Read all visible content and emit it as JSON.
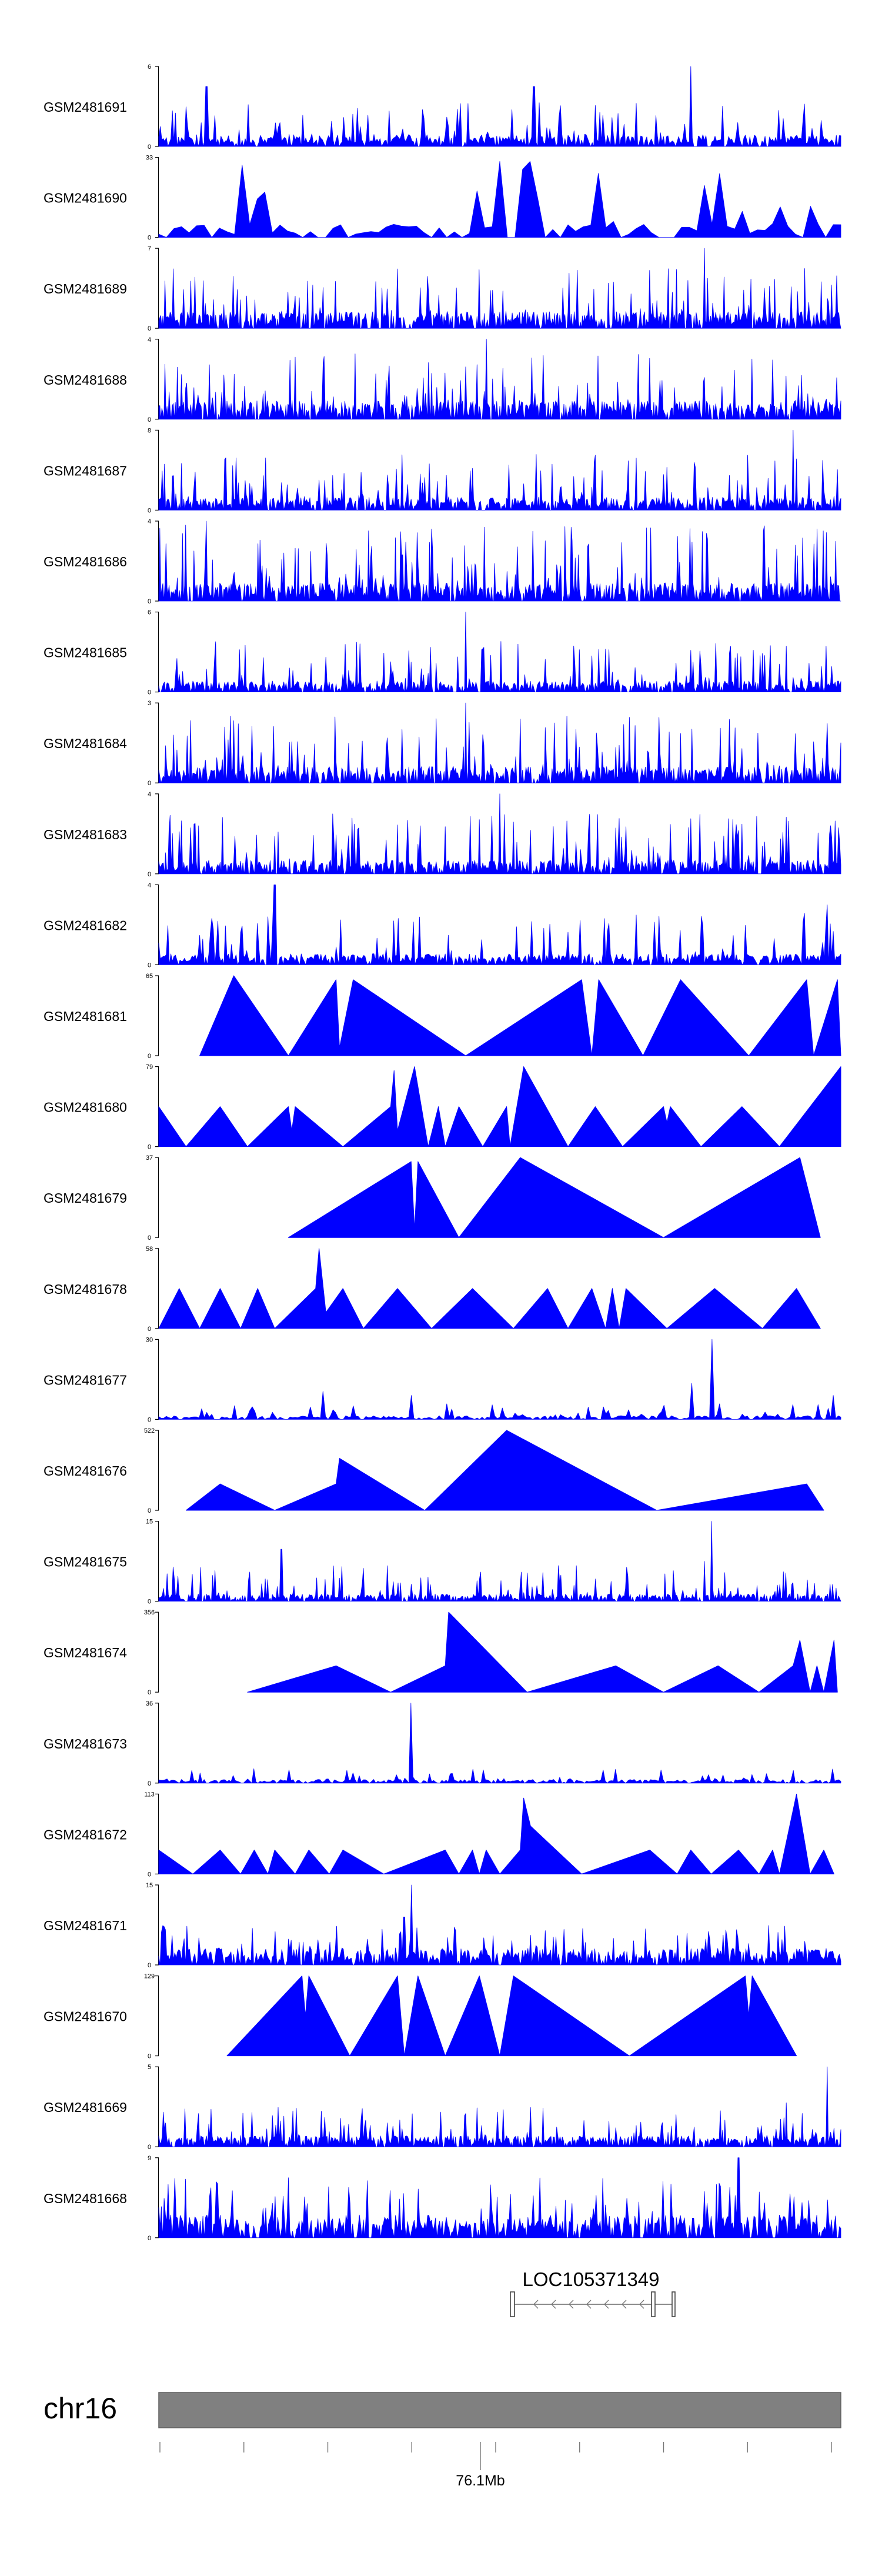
{
  "chart_data": {
    "type": "area",
    "title": "",
    "xlabel": "",
    "ylabel": "",
    "color": "#0000ff",
    "tracks": [
      {
        "name": "GSM2481691",
        "ymax": 6,
        "ymin": 0,
        "style": "dense",
        "density": 150,
        "base": 0.13,
        "spike": 0.55,
        "peaks": [
          [
            0.78,
            1.0
          ],
          [
            0.07,
            0.75
          ],
          [
            0.55,
            0.75
          ]
        ]
      },
      {
        "name": "GSM2481690",
        "ymax": 33,
        "ymin": 0,
        "style": "triangles",
        "density": 30,
        "base": 0.15,
        "spike": 0.95,
        "peaks": [
          [
            0.5,
            0.95
          ],
          [
            0.53,
            0.85
          ],
          [
            0.54,
            0.95
          ],
          [
            0.64,
            0.8
          ],
          [
            0.8,
            0.65
          ]
        ]
      },
      {
        "name": "GSM2481689",
        "ymax": 7,
        "ymin": 0,
        "style": "dense",
        "density": 220,
        "base": 0.18,
        "spike": 0.75,
        "peaks": [
          [
            0.8,
            1.0
          ]
        ]
      },
      {
        "name": "GSM2481688",
        "ymax": 4,
        "ymin": 0,
        "style": "dense",
        "density": 220,
        "base": 0.2,
        "spike": 0.85,
        "peaks": [
          [
            0.48,
            1.0
          ]
        ]
      },
      {
        "name": "GSM2481687",
        "ymax": 8,
        "ymin": 0,
        "style": "dense",
        "density": 200,
        "base": 0.14,
        "spike": 0.7,
        "peaks": [
          [
            0.93,
            1.0
          ]
        ]
      },
      {
        "name": "GSM2481686",
        "ymax": 4,
        "ymin": 0,
        "style": "dense",
        "density": 220,
        "base": 0.2,
        "spike": 0.95,
        "peaks": [
          [
            0.07,
            1.0
          ]
        ]
      },
      {
        "name": "GSM2481685",
        "ymax": 6,
        "ymin": 0,
        "style": "dense",
        "density": 200,
        "base": 0.12,
        "spike": 0.65,
        "peaks": [
          [
            0.45,
            1.0
          ]
        ]
      },
      {
        "name": "GSM2481684",
        "ymax": 3,
        "ymin": 0,
        "style": "dense",
        "density": 200,
        "base": 0.18,
        "spike": 0.85,
        "peaks": [
          [
            0.45,
            1.0
          ]
        ]
      },
      {
        "name": "GSM2481683",
        "ymax": 4,
        "ymin": 0,
        "style": "dense",
        "density": 200,
        "base": 0.15,
        "spike": 0.75,
        "peaks": [
          [
            0.5,
            1.0
          ]
        ]
      },
      {
        "name": "GSM2481682",
        "ymax": 4,
        "ymin": 0,
        "style": "dense",
        "density": 150,
        "base": 0.12,
        "spike": 0.65,
        "peaks": [
          [
            0.17,
            1.0
          ],
          [
            0.98,
            0.75
          ]
        ]
      },
      {
        "name": "GSM2481681",
        "ymax": 65,
        "ymin": 0,
        "style": "points",
        "points": [
          [
            0.06,
            0
          ],
          [
            0.11,
            1.0
          ],
          [
            0.19,
            0
          ],
          [
            0.26,
            0.95
          ],
          [
            0.265,
            0.1
          ],
          [
            0.285,
            0.95
          ],
          [
            0.45,
            0
          ],
          [
            0.62,
            0.95
          ],
          [
            0.635,
            0
          ],
          [
            0.645,
            0.95
          ],
          [
            0.71,
            0
          ],
          [
            0.765,
            0.95
          ],
          [
            0.865,
            0
          ],
          [
            0.95,
            0.95
          ],
          [
            0.96,
            0
          ],
          [
            0.995,
            0.95
          ],
          [
            1.0,
            0
          ]
        ]
      },
      {
        "name": "GSM2481680",
        "ymax": 79,
        "ymin": 0,
        "style": "points",
        "points": [
          [
            0.0,
            0.5
          ],
          [
            0.04,
            0
          ],
          [
            0.09,
            0.5
          ],
          [
            0.13,
            0
          ],
          [
            0.19,
            0.5
          ],
          [
            0.195,
            0.2
          ],
          [
            0.2,
            0.5
          ],
          [
            0.27,
            0
          ],
          [
            0.34,
            0.5
          ],
          [
            0.345,
            0.95
          ],
          [
            0.35,
            0.2
          ],
          [
            0.375,
            1.0
          ],
          [
            0.395,
            0
          ],
          [
            0.41,
            0.5
          ],
          [
            0.42,
            0
          ],
          [
            0.44,
            0.5
          ],
          [
            0.475,
            0
          ],
          [
            0.51,
            0.5
          ],
          [
            0.515,
            0
          ],
          [
            0.535,
            1.0
          ],
          [
            0.6,
            0
          ],
          [
            0.64,
            0.5
          ],
          [
            0.68,
            0
          ],
          [
            0.74,
            0.5
          ],
          [
            0.745,
            0.3
          ],
          [
            0.75,
            0.5
          ],
          [
            0.795,
            0
          ],
          [
            0.855,
            0.5
          ],
          [
            0.91,
            0
          ],
          [
            1.0,
            1.0
          ]
        ]
      },
      {
        "name": "GSM2481679",
        "ymax": 37,
        "ymin": 0,
        "style": "points",
        "points": [
          [
            0.19,
            0
          ],
          [
            0.37,
            0.95
          ],
          [
            0.375,
            0.1
          ],
          [
            0.38,
            0.95
          ],
          [
            0.44,
            0
          ],
          [
            0.53,
            1.0
          ],
          [
            0.74,
            0
          ],
          [
            0.94,
            1.0
          ],
          [
            0.97,
            0
          ]
        ]
      },
      {
        "name": "GSM2481678",
        "ymax": 58,
        "ymin": 0,
        "style": "points",
        "points": [
          [
            0.0,
            0
          ],
          [
            0.03,
            0.5
          ],
          [
            0.06,
            0
          ],
          [
            0.09,
            0.5
          ],
          [
            0.12,
            0
          ],
          [
            0.145,
            0.5
          ],
          [
            0.17,
            0
          ],
          [
            0.23,
            0.5
          ],
          [
            0.235,
            1.0
          ],
          [
            0.245,
            0.2
          ],
          [
            0.27,
            0.5
          ],
          [
            0.3,
            0
          ],
          [
            0.35,
            0.5
          ],
          [
            0.4,
            0
          ],
          [
            0.46,
            0.5
          ],
          [
            0.52,
            0
          ],
          [
            0.57,
            0.5
          ],
          [
            0.6,
            0
          ],
          [
            0.635,
            0.5
          ],
          [
            0.655,
            0
          ],
          [
            0.665,
            0.5
          ],
          [
            0.675,
            0
          ],
          [
            0.685,
            0.5
          ],
          [
            0.745,
            0
          ],
          [
            0.815,
            0.5
          ],
          [
            0.885,
            0
          ],
          [
            0.935,
            0.5
          ],
          [
            0.97,
            0
          ]
        ]
      },
      {
        "name": "GSM2481677",
        "ymax": 30,
        "ymin": 0,
        "style": "dense",
        "density": 90,
        "base": 0.04,
        "spike": 0.2,
        "peaks": [
          [
            0.81,
            1.0
          ],
          [
            0.78,
            0.45
          ],
          [
            0.24,
            0.35
          ],
          [
            0.37,
            0.3
          ],
          [
            0.99,
            0.3
          ]
        ]
      },
      {
        "name": "GSM2481676",
        "ymax": 522,
        "ymin": 0,
        "style": "points",
        "points": [
          [
            0.04,
            0
          ],
          [
            0.09,
            0.33
          ],
          [
            0.17,
            0
          ],
          [
            0.26,
            0.33
          ],
          [
            0.265,
            0.65
          ],
          [
            0.39,
            0
          ],
          [
            0.51,
            1.0
          ],
          [
            0.73,
            0
          ],
          [
            0.95,
            0.33
          ],
          [
            0.975,
            0
          ]
        ]
      },
      {
        "name": "GSM2481675",
        "ymax": 15,
        "ymin": 0,
        "style": "dense",
        "density": 190,
        "base": 0.08,
        "spike": 0.45,
        "peaks": [
          [
            0.81,
            1.0
          ],
          [
            0.18,
            0.65
          ],
          [
            0.8,
            0.5
          ]
        ]
      },
      {
        "name": "GSM2481674",
        "ymax": 356,
        "ymin": 0,
        "style": "points",
        "points": [
          [
            0.13,
            0
          ],
          [
            0.26,
            0.33
          ],
          [
            0.34,
            0
          ],
          [
            0.42,
            0.33
          ],
          [
            0.425,
            1.0
          ],
          [
            0.54,
            0
          ],
          [
            0.67,
            0.33
          ],
          [
            0.74,
            0
          ],
          [
            0.82,
            0.33
          ],
          [
            0.88,
            0
          ],
          [
            0.93,
            0.33
          ],
          [
            0.94,
            0.65
          ],
          [
            0.955,
            0
          ],
          [
            0.965,
            0.33
          ],
          [
            0.975,
            0
          ],
          [
            0.99,
            0.65
          ],
          [
            0.995,
            0
          ]
        ]
      },
      {
        "name": "GSM2481673",
        "ymax": 36,
        "ymin": 0,
        "style": "dense",
        "density": 110,
        "base": 0.04,
        "spike": 0.18,
        "peaks": [
          [
            0.37,
            1.0
          ]
        ]
      },
      {
        "name": "GSM2481672",
        "ymax": 113,
        "ymin": 0,
        "style": "points",
        "points": [
          [
            0.0,
            0.3
          ],
          [
            0.05,
            0
          ],
          [
            0.09,
            0.3
          ],
          [
            0.12,
            0
          ],
          [
            0.14,
            0.3
          ],
          [
            0.16,
            0
          ],
          [
            0.17,
            0.3
          ],
          [
            0.2,
            0
          ],
          [
            0.22,
            0.3
          ],
          [
            0.25,
            0
          ],
          [
            0.27,
            0.3
          ],
          [
            0.33,
            0
          ],
          [
            0.42,
            0.3
          ],
          [
            0.44,
            0
          ],
          [
            0.46,
            0.3
          ],
          [
            0.47,
            0
          ],
          [
            0.48,
            0.3
          ],
          [
            0.5,
            0
          ],
          [
            0.53,
            0.3
          ],
          [
            0.535,
            0.95
          ],
          [
            0.545,
            0.6
          ],
          [
            0.62,
            0
          ],
          [
            0.72,
            0.3
          ],
          [
            0.76,
            0
          ],
          [
            0.78,
            0.3
          ],
          [
            0.81,
            0
          ],
          [
            0.85,
            0.3
          ],
          [
            0.88,
            0
          ],
          [
            0.9,
            0.3
          ],
          [
            0.91,
            0
          ],
          [
            0.935,
            1.0
          ],
          [
            0.955,
            0
          ],
          [
            0.975,
            0.3
          ],
          [
            0.99,
            0
          ]
        ]
      },
      {
        "name": "GSM2481671",
        "ymax": 15,
        "ymin": 0,
        "style": "dense",
        "density": 170,
        "base": 0.18,
        "spike": 0.5,
        "peaks": [
          [
            0.37,
            1.0
          ],
          [
            0.36,
            0.6
          ]
        ]
      },
      {
        "name": "GSM2481670",
        "ymax": 129,
        "ymin": 0,
        "style": "points",
        "points": [
          [
            0.1,
            0
          ],
          [
            0.21,
            1.0
          ],
          [
            0.215,
            0.5
          ],
          [
            0.22,
            1.0
          ],
          [
            0.28,
            0
          ],
          [
            0.35,
            1.0
          ],
          [
            0.36,
            0
          ],
          [
            0.38,
            1.0
          ],
          [
            0.42,
            0
          ],
          [
            0.47,
            1.0
          ],
          [
            0.5,
            0
          ],
          [
            0.52,
            1.0
          ],
          [
            0.69,
            0
          ],
          [
            0.86,
            1.0
          ],
          [
            0.865,
            0.5
          ],
          [
            0.87,
            1.0
          ],
          [
            0.935,
            0
          ]
        ]
      },
      {
        "name": "GSM2481669",
        "ymax": 5,
        "ymin": 0,
        "style": "dense",
        "density": 200,
        "base": 0.12,
        "spike": 0.5,
        "peaks": [
          [
            0.98,
            1.0
          ],
          [
            0.92,
            0.55
          ]
        ]
      },
      {
        "name": "GSM2481668",
        "ymax": 9,
        "ymin": 0,
        "style": "dense",
        "density": 170,
        "base": 0.25,
        "spike": 0.75,
        "peaks": [
          [
            0.85,
            1.0
          ],
          [
            0.19,
            0.75
          ]
        ]
      }
    ],
    "gene": {
      "name": "LOC105371349",
      "strand": "-"
    },
    "chromosome": {
      "label": "chr16",
      "tick_label": "76.1Mb",
      "tick_count": 9
    }
  }
}
